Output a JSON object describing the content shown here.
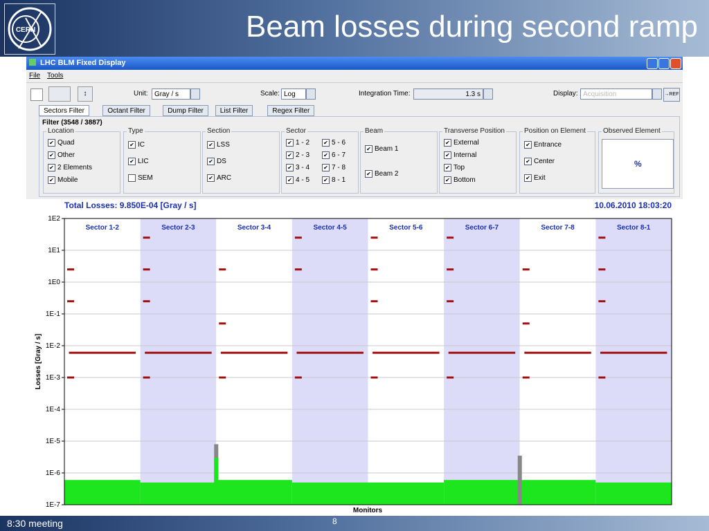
{
  "slide": {
    "title": "Beam losses during second ramp",
    "logo": "CERN",
    "footer": "8:30 meeting",
    "page": "8"
  },
  "window": {
    "title": "LHC BLM Fixed Display",
    "menu": [
      "File",
      "Tools"
    ],
    "toolbar": {
      "unit_label": "Unit:",
      "unit": "Gray / s",
      "scale_label": "Scale:",
      "scale": "Log",
      "integration_label": "Integration Time:",
      "integration": "1.3 s",
      "display_label": "Display:",
      "display": "Acquisition",
      "ref": "→REF"
    },
    "tabs": [
      "Sectors Filter",
      "Octant Filter",
      "Dump Filter",
      "List Filter",
      "Regex Filter"
    ],
    "filter_title": "Filter (3548 / 3887)",
    "groups": [
      {
        "title": "Location",
        "items": [
          {
            "label": "Quad",
            "checked": true
          },
          {
            "label": "Other",
            "checked": true
          },
          {
            "label": "2 Elements",
            "checked": true
          },
          {
            "label": "Mobile",
            "checked": true
          }
        ]
      },
      {
        "title": "Type",
        "items": [
          {
            "label": "IC",
            "checked": true
          },
          {
            "label": "LIC",
            "checked": true
          },
          {
            "label": "SEM",
            "checked": false
          }
        ]
      },
      {
        "title": "Section",
        "items": [
          {
            "label": "LSS",
            "checked": true
          },
          {
            "label": "DS",
            "checked": true
          },
          {
            "label": "ARC",
            "checked": true
          }
        ]
      },
      {
        "title": "Sector",
        "items": [
          {
            "label": "1 - 2",
            "checked": true
          },
          {
            "label": "2 - 3",
            "checked": true
          },
          {
            "label": "3 - 4",
            "checked": true
          },
          {
            "label": "4 - 5",
            "checked": true
          },
          {
            "label": "5 - 6",
            "checked": true
          },
          {
            "label": "6 - 7",
            "checked": true
          },
          {
            "label": "7 - 8",
            "checked": true
          },
          {
            "label": "8 - 1",
            "checked": true
          }
        ]
      },
      {
        "title": "Beam",
        "items": [
          {
            "label": "Beam 1",
            "checked": true
          },
          {
            "label": "Beam 2",
            "checked": true
          }
        ]
      },
      {
        "title": "Transverse Position",
        "items": [
          {
            "label": "External",
            "checked": true
          },
          {
            "label": "Internal",
            "checked": true
          },
          {
            "label": "Top",
            "checked": true
          },
          {
            "label": "Bottom",
            "checked": true
          }
        ]
      },
      {
        "title": "Position on Element",
        "items": [
          {
            "label": "Entrance",
            "checked": true
          },
          {
            "label": "Center",
            "checked": true
          },
          {
            "label": "Exit",
            "checked": true
          }
        ]
      },
      {
        "title": "Observed Element",
        "value": "%"
      }
    ]
  },
  "chart_data": {
    "type": "scatter",
    "title": "Total Losses: 9.850E-04 [Gray / s]",
    "timestamp": "10.06.2010 18:03:20",
    "ylabel": "Losses [Gray / s]",
    "xlabel": "Monitors",
    "categories": [
      "Sector 1-2",
      "Sector 2-3",
      "Sector 3-4",
      "Sector 4-5",
      "Sector 5-6",
      "Sector 6-7",
      "Sector 7-8",
      "Sector 8-1"
    ],
    "log": true,
    "grid": true,
    "ylim": [
      1e-07,
      100
    ],
    "yticks": [
      {
        "value": 1e-07,
        "label": "1E-7"
      },
      {
        "value": 1e-06,
        "label": "1E-6"
      },
      {
        "value": 1e-05,
        "label": "1E-5"
      },
      {
        "value": 0.0001,
        "label": "1E-4"
      },
      {
        "value": 0.001,
        "label": "1E-3"
      },
      {
        "value": 0.01,
        "label": "1E-2"
      },
      {
        "value": 0.1,
        "label": "1E-1"
      },
      {
        "value": 1,
        "label": "1E0"
      },
      {
        "value": 10,
        "label": "1E1"
      },
      {
        "value": 100,
        "label": "1E2"
      }
    ],
    "series": [
      {
        "type": "bar",
        "color": "#1ee61e",
        "values": [
          6e-07,
          5e-07,
          6e-07,
          5e-07,
          5e-07,
          6e-07,
          6e-07,
          5e-07
        ]
      },
      {
        "type": "bar",
        "color": "#888888",
        "values": [
          null,
          null,
          8e-06,
          null,
          null,
          null,
          3.5e-06,
          null
        ]
      },
      {
        "type": "bar",
        "color": "#1ee61e",
        "values": [
          null,
          null,
          3e-06,
          null,
          null,
          null,
          null,
          null
        ]
      },
      {
        "type": "scatter",
        "color": "#a01010",
        "values": [
          0.006,
          0.006,
          0.006,
          0.006,
          0.006,
          0.006,
          0.006,
          0.006
        ]
      },
      {
        "type": "scatter",
        "color": "#a01010",
        "values": [
          0.001,
          0.001,
          0.001,
          0.001,
          0.001,
          0.001,
          0.001,
          0.001
        ]
      },
      {
        "type": "scatter",
        "color": "#a01010",
        "values": [
          2.5,
          2.5,
          2.5,
          2.5,
          2.5,
          2.5,
          2.5,
          2.5
        ]
      },
      {
        "type": "scatter",
        "color": "#a01010",
        "values": [
          null,
          25,
          null,
          25,
          25,
          25,
          null,
          25
        ]
      },
      {
        "type": "scatter",
        "color": "#a01010",
        "values": [
          0.25,
          0.25,
          0.05,
          null,
          0.25,
          0.25,
          0.05,
          0.25
        ]
      }
    ]
  }
}
